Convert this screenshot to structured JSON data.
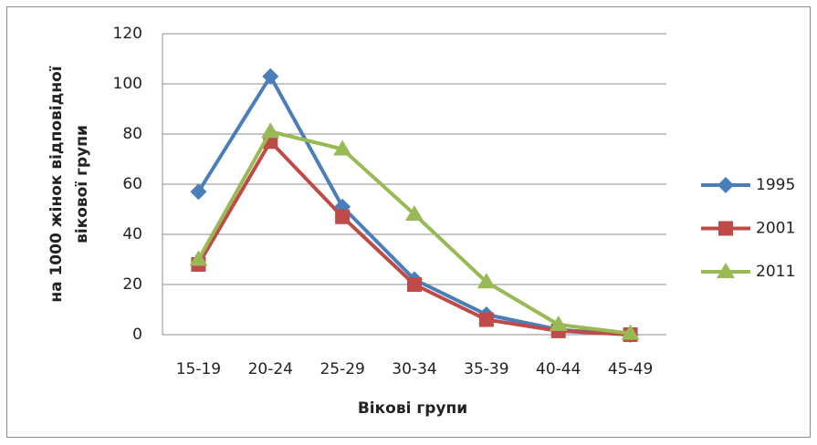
{
  "chart_data": {
    "type": "line",
    "ylabel": [
      "на 1000 жінок відповідної",
      "вікової групи"
    ],
    "xlabel": "Вікові групи",
    "categories": [
      "15-19",
      "20-24",
      "25-29",
      "30-34",
      "35-39",
      "40-44",
      "45-49"
    ],
    "series": [
      {
        "name": "1995",
        "color": "#4a7ebb",
        "marker": "diamond",
        "values": [
          57,
          103,
          51,
          22,
          8,
          2,
          0
        ]
      },
      {
        "name": "2001",
        "color": "#be4b48",
        "marker": "square",
        "values": [
          28,
          77,
          47,
          20,
          6,
          1.5,
          0
        ]
      },
      {
        "name": "2011",
        "color": "#98b954",
        "marker": "triangle",
        "values": [
          30,
          81,
          74,
          48,
          21,
          4,
          0.5
        ]
      }
    ],
    "ylim": [
      0,
      120
    ],
    "yticks": [
      0,
      20,
      40,
      60,
      80,
      100,
      120
    ],
    "grid": true,
    "legend": "right"
  }
}
